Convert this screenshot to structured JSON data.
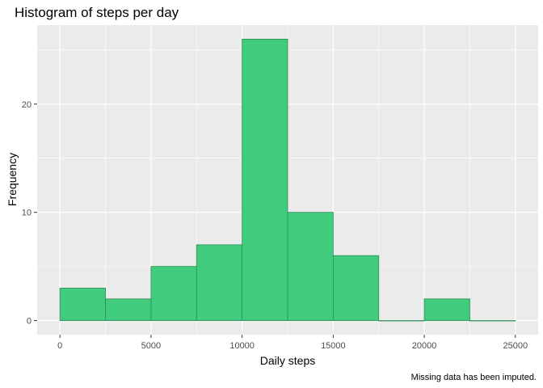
{
  "chart_data": {
    "type": "bar",
    "title": "Histogram of steps per day",
    "xlabel": "Daily steps",
    "ylabel": "Frequency",
    "caption": "Missing data has been imputed.",
    "bin_width": 2500,
    "bins": [
      {
        "start": 0,
        "end": 2500,
        "count": 3
      },
      {
        "start": 2500,
        "end": 5000,
        "count": 2
      },
      {
        "start": 5000,
        "end": 7500,
        "count": 5
      },
      {
        "start": 7500,
        "end": 10000,
        "count": 7
      },
      {
        "start": 10000,
        "end": 12500,
        "count": 26
      },
      {
        "start": 12500,
        "end": 15000,
        "count": 10
      },
      {
        "start": 15000,
        "end": 17500,
        "count": 6
      },
      {
        "start": 17500,
        "end": 20000,
        "count": 0
      },
      {
        "start": 20000,
        "end": 22500,
        "count": 2
      },
      {
        "start": 22500,
        "end": 25000,
        "count": 0
      }
    ],
    "xlim": [
      -1250,
      26250
    ],
    "ylim": [
      -1.3,
      27.3
    ],
    "x_ticks": [
      0,
      5000,
      10000,
      15000,
      20000,
      25000
    ],
    "x_tick_labels": [
      "0",
      "5000",
      "10000",
      "15000",
      "20000",
      "25000"
    ],
    "y_ticks": [
      0,
      10,
      20
    ],
    "y_tick_labels": [
      "0",
      "10",
      "20"
    ],
    "grid": true,
    "colors": {
      "bar_fill": "#41cc7d",
      "bar_stroke": "#2e8b57",
      "panel_background": "#ebebeb",
      "grid": "#ffffff"
    }
  }
}
